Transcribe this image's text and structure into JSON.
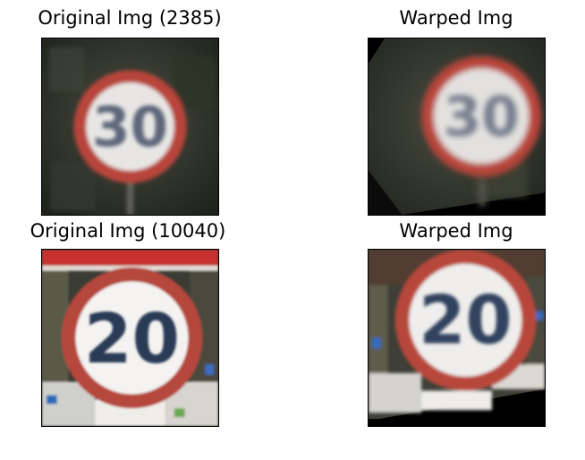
{
  "panels": [
    {
      "title": "Original Img (2385)",
      "sign_number": "30",
      "kind": "original"
    },
    {
      "title": "Warped Img",
      "sign_number": "30",
      "kind": "warped"
    },
    {
      "title": "Original Img (10040)",
      "sign_number": "20",
      "kind": "original"
    },
    {
      "title": "Warped Img",
      "sign_number": "20",
      "kind": "warped"
    }
  ],
  "colors": {
    "sign_ring": "#b8443a",
    "sign_face": "#f2f0ee",
    "digits": "#2d3d58",
    "background_dark": "#2e3228",
    "border_black": "#000000"
  }
}
